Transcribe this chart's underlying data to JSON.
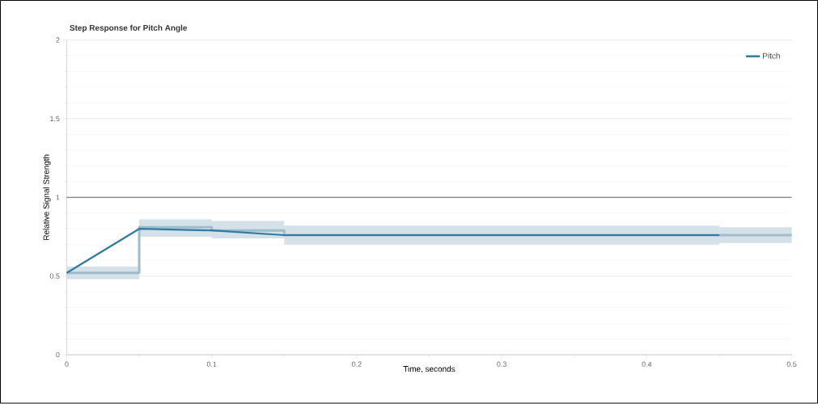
{
  "chart_data": {
    "type": "line",
    "title": "Step Response for Pitch Angle",
    "xlabel": "Time, seconds",
    "ylabel": "Relative Signal Strength",
    "xlim": [
      0,
      0.5
    ],
    "xticks": [
      0,
      0.1,
      0.2,
      0.3,
      0.4,
      0.5
    ],
    "ylim": [
      0,
      2
    ],
    "yticks": [
      0,
      0.5,
      1,
      1.5,
      2
    ],
    "grid": "y",
    "legend": "top right",
    "ref_lines": [
      {
        "axis": "y",
        "value": 1,
        "color": "#666666"
      }
    ],
    "series": [
      {
        "type": "step",
        "color": "#9fbccb",
        "x": [
          0,
          0.05,
          0.1,
          0.15,
          0.45,
          0.5
        ],
        "values": [
          0.52,
          0.81,
          0.79,
          0.76,
          0.76,
          0.76
        ],
        "lower": [
          0.48,
          0.75,
          0.74,
          0.7,
          0.71,
          0.71
        ],
        "upper": [
          0.56,
          0.86,
          0.85,
          0.82,
          0.81,
          0.81
        ]
      },
      {
        "name": "Pitch",
        "color": "#2e7aa3",
        "x": [
          0,
          0.05,
          0.1,
          0.15,
          0.2,
          0.25,
          0.3,
          0.35,
          0.4,
          0.45
        ],
        "values": [
          0.52,
          0.8,
          0.79,
          0.76,
          0.76,
          0.76,
          0.76,
          0.76,
          0.76,
          0.76
        ]
      }
    ]
  }
}
